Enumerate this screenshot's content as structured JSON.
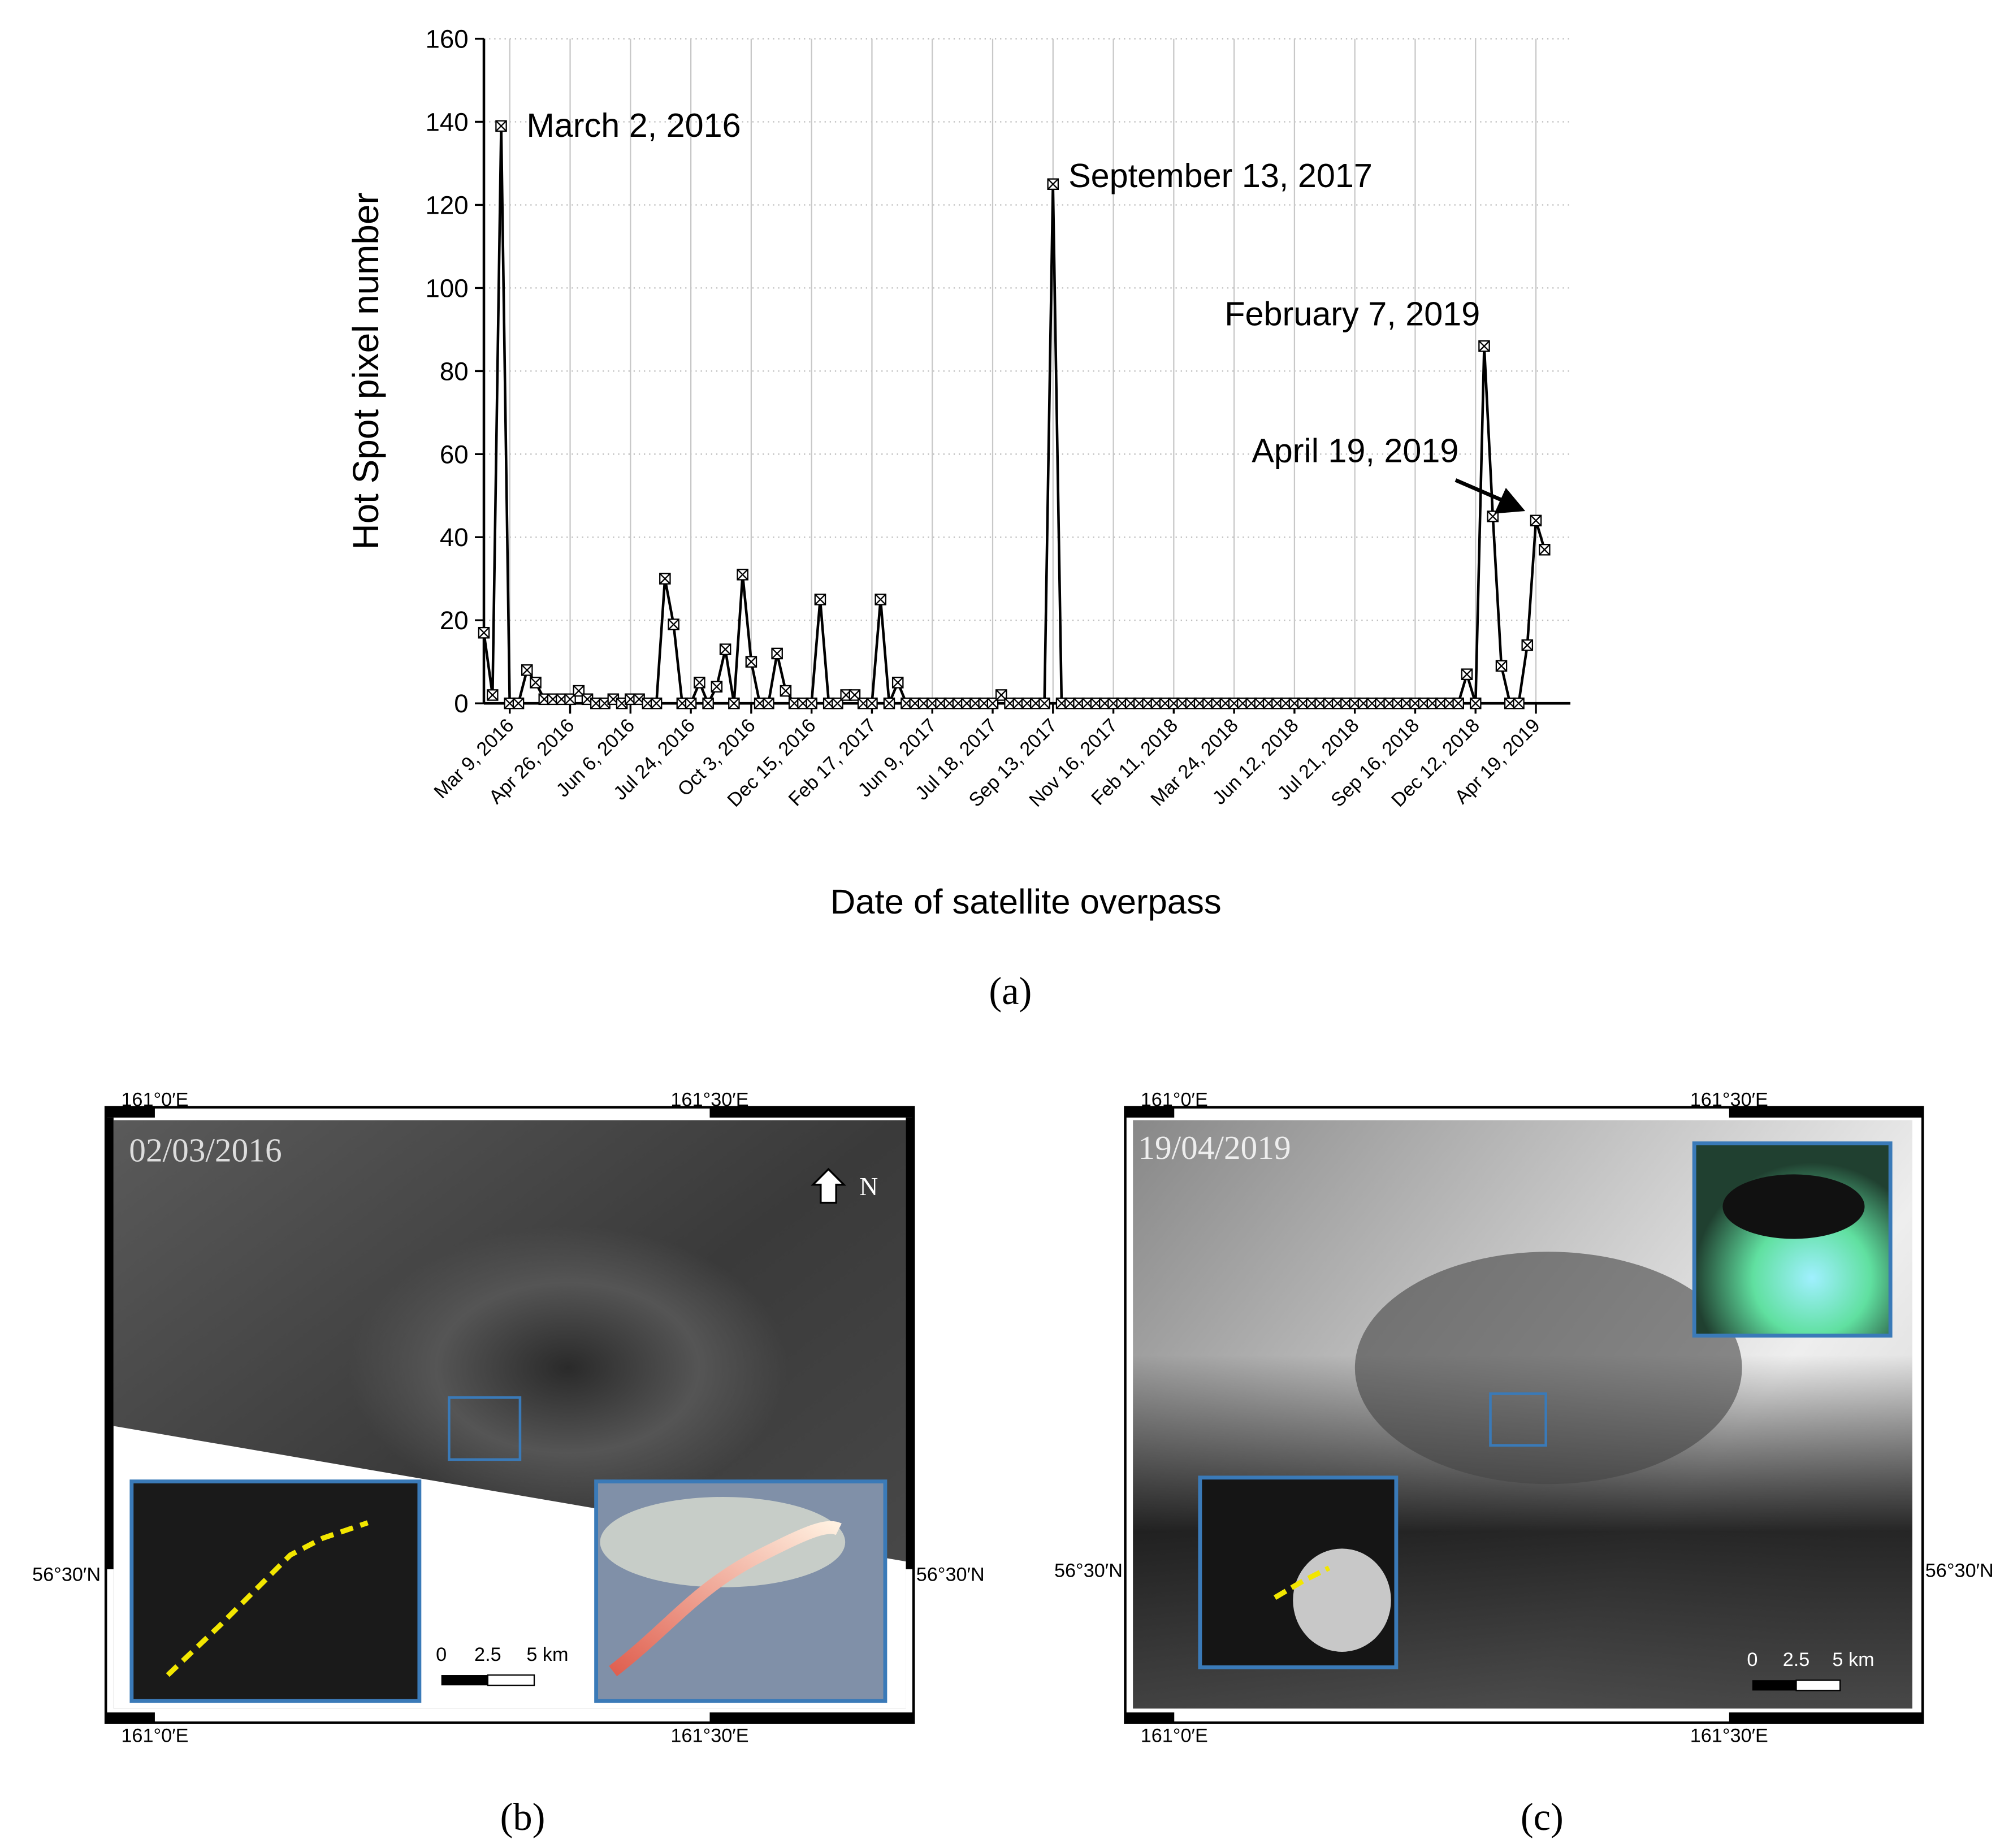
{
  "chart_data": {
    "type": "line",
    "y_label": "Hot Spot pixel number",
    "x_label": "Date of satellite overpass",
    "color": "#000000",
    "x": [
      0,
      1,
      2,
      3,
      4,
      5,
      6,
      7,
      8,
      9,
      10,
      11,
      12,
      13,
      14,
      15,
      16,
      17,
      18,
      19,
      20,
      21,
      22,
      23,
      24,
      25,
      26,
      27,
      28,
      29,
      30,
      31,
      32,
      33,
      34,
      35,
      36,
      37,
      38,
      39,
      40,
      41,
      42,
      43,
      44,
      45,
      46,
      47,
      48,
      49,
      50,
      51,
      52,
      53,
      54,
      55,
      56,
      57,
      58,
      59,
      60,
      61,
      62,
      63,
      64,
      65,
      66,
      67,
      68,
      69,
      70,
      71,
      72,
      73,
      74,
      75,
      76,
      77,
      78,
      79,
      80,
      81,
      82,
      83,
      84,
      85,
      86,
      87,
      88,
      89,
      90,
      91,
      92,
      93,
      94,
      95,
      96,
      97,
      98,
      99,
      100,
      101,
      102,
      103,
      104,
      105,
      106,
      107,
      108,
      109,
      110,
      111,
      112,
      113,
      114,
      115,
      116,
      117,
      118,
      119,
      120,
      121,
      122,
      123
    ],
    "values": [
      17,
      2,
      139,
      0,
      0,
      8,
      5,
      1,
      1,
      1,
      1,
      3,
      1,
      0,
      0,
      1,
      0,
      1,
      1,
      0,
      0,
      30,
      19,
      0,
      0,
      5,
      0,
      4,
      13,
      0,
      31,
      10,
      0,
      0,
      12,
      3,
      0,
      0,
      0,
      25,
      0,
      0,
      2,
      2,
      0,
      0,
      25,
      0,
      5,
      0,
      0,
      0,
      0,
      0,
      0,
      0,
      0,
      0,
      0,
      0,
      2,
      0,
      0,
      0,
      0,
      0,
      125,
      0,
      0,
      0,
      0,
      0,
      0,
      0,
      0,
      0,
      0,
      0,
      0,
      0,
      0,
      0,
      0,
      0,
      0,
      0,
      0,
      0,
      0,
      0,
      0,
      0,
      0,
      0,
      0,
      0,
      0,
      0,
      0,
      0,
      0,
      0,
      0,
      0,
      0,
      0,
      0,
      0,
      0,
      0,
      0,
      0,
      0,
      0,
      7,
      0,
      86,
      45,
      9,
      0,
      0,
      14,
      44,
      37
    ],
    "xlim": [
      0,
      126
    ],
    "xticks": [
      {
        "value": 3,
        "label": "Mar 9, 2016"
      },
      {
        "value": 10,
        "label": "Apr 26, 2016"
      },
      {
        "value": 17,
        "label": "Jun 6, 2016"
      },
      {
        "value": 24,
        "label": "Jul 24, 2016"
      },
      {
        "value": 31,
        "label": "Oct 3, 2016"
      },
      {
        "value": 38,
        "label": "Dec 15, 2016"
      },
      {
        "value": 45,
        "label": "Feb 17, 2017"
      },
      {
        "value": 52,
        "label": "Jun 9, 2017"
      },
      {
        "value": 59,
        "label": "Jul 18, 2017"
      },
      {
        "value": 66,
        "label": "Sep 13, 2017"
      },
      {
        "value": 73,
        "label": "Nov 16, 2017"
      },
      {
        "value": 80,
        "label": "Feb 11, 2018"
      },
      {
        "value": 87,
        "label": "Mar 24, 2018"
      },
      {
        "value": 94,
        "label": "Jun 12, 2018"
      },
      {
        "value": 101,
        "label": "Jul 21, 2018"
      },
      {
        "value": 108,
        "label": "Sep 16, 2018"
      },
      {
        "value": 115,
        "label": "Dec 12, 2018"
      },
      {
        "value": 122,
        "label": "Apr 19, 2019"
      }
    ],
    "ylim": [
      0,
      160
    ],
    "yticks": [
      0,
      20,
      40,
      60,
      80,
      100,
      120,
      140,
      160
    ],
    "grid": true,
    "annotations": [
      "March 2, 2016",
      "September 13, 2017",
      "February 7, 2019",
      "April 19, 2019"
    ]
  },
  "figure": {
    "captions": [
      "(a)",
      "(b)",
      "(c)"
    ],
    "panels": [
      {
        "date": "02/03/2016",
        "north": "N",
        "lon_labels": [
          "161°0′E",
          "161°30′E"
        ],
        "lat_label": "56°30′N",
        "scale_labels": [
          "0",
          "2.5",
          "5 km"
        ]
      },
      {
        "date": "19/04/2019",
        "lon_labels": [
          "161°0′E",
          "161°30′E"
        ],
        "lat_label": "56°30′N",
        "scale_labels": [
          "0",
          "2.5",
          "5 km"
        ]
      }
    ]
  }
}
